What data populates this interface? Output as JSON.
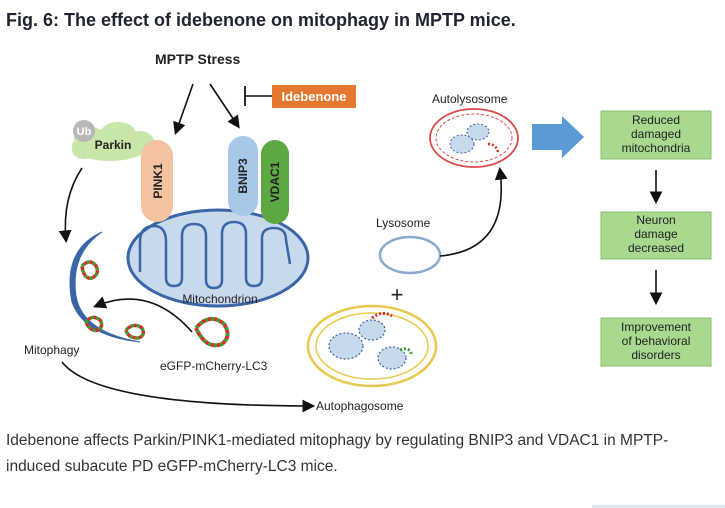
{
  "figure": {
    "title": "Fig. 6: The effect of idebenone on mitophagy in MPTP mice.",
    "caption": "Idebenone affects Parkin/PINK1-mediated mitophagy by regulating BNIP3 and VDAC1 in MPTP-induced subacute PD eGFP-mCherry-LC3 mice."
  },
  "diagram": {
    "mptp_stress": "MPTP Stress",
    "idebenone": "Idebenone",
    "ub": "Ub",
    "parkin": "Parkin",
    "pink1": "PINK1",
    "bnip3": "BNIP3",
    "vdac1": "VDAC1",
    "mitochondrion": "Mitochondrion",
    "mitophagy": "Mitophagy",
    "lc3": "eGFP-mCherry-LC3",
    "autophagosome": "Autophagosome",
    "lysosome": "Lysosome",
    "plus": "+",
    "autolysosome": "Autolysosome",
    "outcomes": [
      {
        "line1": "Reduced",
        "line2": "damaged",
        "line3": "mitochondria"
      },
      {
        "line1": "Neuron",
        "line2": "damage",
        "line3": "decreased"
      },
      {
        "line1": "Improvement",
        "line2": "of behavioral",
        "line3": "disorders"
      }
    ],
    "colors": {
      "parkin_cloud": "#c8e6a8",
      "ub_circle": "#b8b8b8",
      "pink1": "#f4c39f",
      "bnip3": "#a8c8ea",
      "vdac1": "#5ea843",
      "idebenone_box": "#e5782e",
      "mito_fill": "#c8d9ec",
      "mito_stroke": "#3a66a8",
      "outcome_box": "#a9d88f",
      "big_arrow": "#5b9bd5",
      "autophagosome_ring": "#e8c84a",
      "autolysosome_ring": "#d94a4a"
    }
  }
}
